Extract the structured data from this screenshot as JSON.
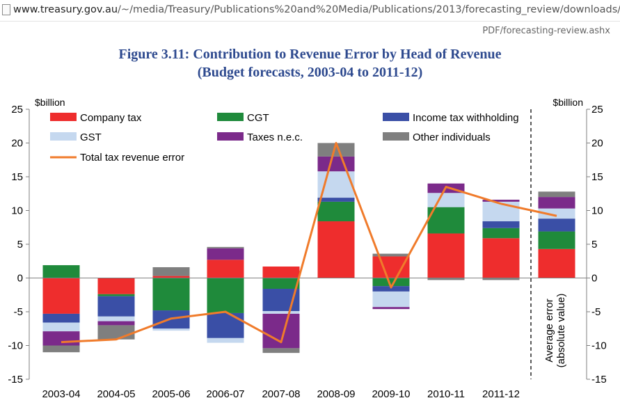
{
  "browser": {
    "url_domain": "www.treasury.gov.au",
    "url_path": "/~/media/Treasury/Publications%20and%20Media/Publications/2013/forecasting_review/downloads/",
    "url_continued": "PDF/forecasting-review.ashx"
  },
  "figure": {
    "title_line1": "Figure 3.11: Contribution to Revenue Error by Head of Revenue",
    "title_line2": "(Budget forecasts, 2003-04 to 2011-12)"
  },
  "chart_data": {
    "type": "bar",
    "stacked": true,
    "ylabel_left": "$billion",
    "ylabel_right": "$billion",
    "ylim": [
      -15,
      25
    ],
    "yticks": [
      25,
      20,
      15,
      10,
      5,
      0,
      -5,
      -10,
      -15
    ],
    "categories": [
      "2003-04",
      "2004-05",
      "2005-06",
      "2006-07",
      "2007-08",
      "2008-09",
      "2009-10",
      "2010-11",
      "2011-12"
    ],
    "series": [
      {
        "name": "Company tax",
        "color": "#ee2d2d",
        "values": [
          -5.3,
          -2.4,
          0.3,
          2.7,
          1.7,
          8.4,
          3.2,
          6.6,
          5.9
        ]
      },
      {
        "name": "CGT",
        "color": "#1f8a3b",
        "values": [
          1.9,
          -0.3,
          -4.8,
          -5.2,
          -1.6,
          2.9,
          -1.2,
          3.9,
          1.5
        ]
      },
      {
        "name": "Income tax withholding",
        "color": "#3a4fa6",
        "values": [
          -1.3,
          -3.0,
          -2.7,
          -3.7,
          -3.3,
          0.6,
          -0.8,
          0.0,
          1.0
        ]
      },
      {
        "name": "GST",
        "color": "#c5d8ef",
        "values": [
          -1.3,
          -0.7,
          -0.3,
          -0.7,
          -0.4,
          3.9,
          -2.3,
          2.1,
          2.9
        ]
      },
      {
        "name": "Taxes n.e.c.",
        "color": "#7b2a8a",
        "values": [
          -2.1,
          -0.6,
          0.0,
          1.7,
          -5.1,
          2.2,
          -0.3,
          1.4,
          0.3
        ]
      },
      {
        "name": "Other individuals",
        "color": "#7f7f7f",
        "values": [
          -1.0,
          -2.1,
          1.3,
          0.2,
          -0.7,
          2.0,
          0.4,
          -0.3,
          -0.3
        ]
      }
    ],
    "line_series": {
      "name": "Total tax revenue error",
      "color": "#f07b2b",
      "values": [
        -9.5,
        -9.1,
        -6.0,
        -5.0,
        -9.5,
        20.0,
        -1.4,
        13.5,
        11.0
      ]
    },
    "average_error": {
      "label_line1": "Average error",
      "label_line2": "(absolute value)",
      "values": [
        4.3,
        2.6,
        1.9,
        1.5,
        1.7,
        0.8
      ],
      "total_line_value": 9.2
    },
    "legend_position": "top",
    "grid": false
  }
}
